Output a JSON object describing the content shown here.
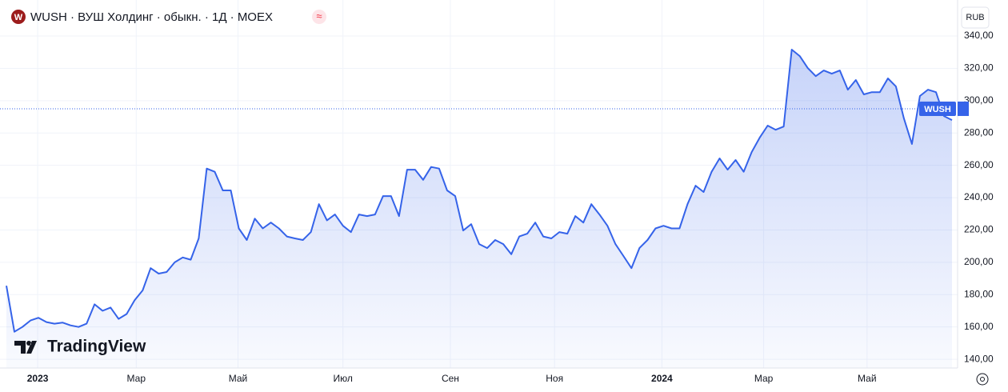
{
  "header": {
    "logo": "W",
    "title": "WUSH · ВУШ Холдинг · обыкн. · 1Д · MOEX",
    "badge": "≈",
    "currency": "RUB"
  },
  "watermark": "TradingView",
  "chart_data": {
    "type": "line",
    "series": [
      {
        "name": "WUSH",
        "color": "#3563e9",
        "values": [
          185.5,
          157,
          160,
          164,
          165.7,
          163,
          162,
          162.7,
          161,
          160,
          162,
          174,
          170,
          172,
          165,
          168,
          176.6,
          182.6,
          196.4,
          193,
          194,
          200,
          203,
          201.6,
          214.8,
          258,
          256,
          244.5,
          244.5,
          221,
          213.8,
          227,
          221,
          224.6,
          221,
          216,
          214.8,
          213.8,
          218.7,
          236,
          226,
          229.6,
          222.6,
          218.7,
          229.6,
          228.6,
          229.6,
          241,
          241,
          228.6,
          257.3,
          257.3,
          251,
          259,
          258,
          244.5,
          241,
          219.7,
          223.6,
          211.3,
          208.8,
          213.8,
          211.3,
          205,
          216,
          217.7,
          224.6,
          216,
          214.8,
          218.7,
          217.7,
          228.6,
          224.6,
          236,
          229.6,
          222.6,
          211.3,
          203.9,
          196.4,
          208.8,
          213.8,
          221,
          222.6,
          221,
          221,
          236,
          247.4,
          243.5,
          256,
          264.3,
          257.3,
          263.3,
          256,
          268.2,
          277.1,
          284.6,
          282,
          284,
          331.6,
          327.6,
          320.2,
          315.2,
          318.7,
          316.7,
          318.7,
          306.8,
          312.8,
          303.9,
          305.3,
          305.3,
          313.8,
          308.8,
          289,
          273.2,
          302.9,
          306.8,
          305.3,
          290.5,
          288
        ]
      }
    ],
    "xlim": [
      -0.8,
      118.7
    ],
    "xticks": [
      {
        "value": 3.9,
        "label": "2023"
      },
      {
        "value": 16.2,
        "label": "Мар"
      },
      {
        "value": 28.9,
        "label": "Май"
      },
      {
        "value": 42,
        "label": "Июл"
      },
      {
        "value": 55.4,
        "label": "Сен"
      },
      {
        "value": 68.4,
        "label": "Ноя"
      },
      {
        "value": 81.8,
        "label": "2024"
      },
      {
        "value": 94.5,
        "label": "Мар"
      },
      {
        "value": 107.4,
        "label": "Май"
      }
    ],
    "ylim": [
      134.6,
      362.3
    ],
    "yticks": [
      {
        "value": 140,
        "label": "140,00"
      },
      {
        "value": 160,
        "label": "160,00"
      },
      {
        "value": 180,
        "label": "180,00"
      },
      {
        "value": 200,
        "label": "200,00"
      },
      {
        "value": 220,
        "label": "220,00"
      },
      {
        "value": 240,
        "label": "240,00"
      },
      {
        "value": 260,
        "label": "260,00"
      },
      {
        "value": 280,
        "label": "280,00"
      },
      {
        "value": 300,
        "label": "300,00"
      },
      {
        "value": 320,
        "label": "320,00"
      },
      {
        "value": 340,
        "label": "340,00"
      }
    ],
    "grid": true,
    "price_line": 295
  }
}
